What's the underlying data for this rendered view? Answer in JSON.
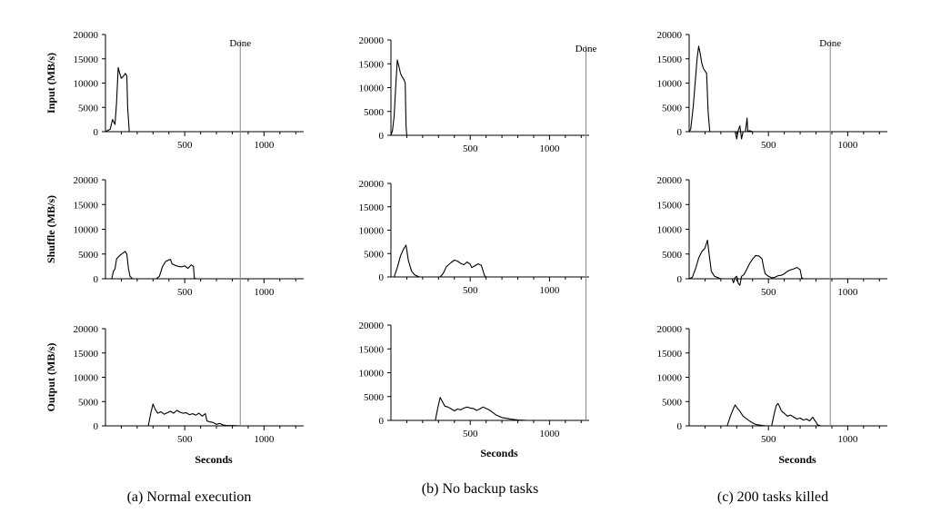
{
  "figure": {
    "done_label": "Done",
    "x_axis_title": "Seconds",
    "row_titles": [
      "Input (MB/s)",
      "Shuffle (MB/s)",
      "Output (MB/s)"
    ],
    "captions": [
      "(a) Normal execution",
      "(b) No backup tasks",
      "(c) 200 tasks killed"
    ]
  },
  "chart_data": [
    {
      "type": "line",
      "panel": "(a) Normal execution",
      "xlabel": "Seconds",
      "xlim": [
        0,
        1250
      ],
      "x_ticks": [
        500,
        1000
      ],
      "y_ticks": [
        0,
        5000,
        10000,
        15000,
        20000
      ],
      "done_time": 850,
      "series": [
        {
          "name": "Input (MB/s)",
          "ylim": [
            0,
            20000
          ],
          "points": [
            [
              0,
              0
            ],
            [
              30,
              500
            ],
            [
              45,
              2500
            ],
            [
              60,
              1500
            ],
            [
              70,
              6000
            ],
            [
              80,
              13200
            ],
            [
              90,
              12000
            ],
            [
              100,
              11000
            ],
            [
              115,
              11500
            ],
            [
              125,
              12000
            ],
            [
              135,
              11500
            ],
            [
              140,
              5000
            ],
            [
              150,
              0
            ],
            [
              1250,
              0
            ]
          ]
        },
        {
          "name": "Shuffle (MB/s)",
          "ylim": [
            0,
            20000
          ],
          "points": [
            [
              0,
              0
            ],
            [
              40,
              0
            ],
            [
              50,
              1500
            ],
            [
              60,
              2000
            ],
            [
              70,
              4000
            ],
            [
              90,
              4700
            ],
            [
              110,
              5200
            ],
            [
              125,
              5500
            ],
            [
              135,
              5000
            ],
            [
              145,
              2000
            ],
            [
              155,
              500
            ],
            [
              170,
              0
            ],
            [
              320,
              0
            ],
            [
              340,
              500
            ],
            [
              360,
              2500
            ],
            [
              380,
              3500
            ],
            [
              400,
              3800
            ],
            [
              410,
              3900
            ],
            [
              420,
              3000
            ],
            [
              440,
              2700
            ],
            [
              460,
              2500
            ],
            [
              480,
              2400
            ],
            [
              500,
              2600
            ],
            [
              520,
              2100
            ],
            [
              540,
              2800
            ],
            [
              555,
              2500
            ],
            [
              560,
              200
            ],
            [
              570,
              0
            ],
            [
              1250,
              0
            ]
          ]
        },
        {
          "name": "Output (MB/s)",
          "ylim": [
            0,
            20000
          ],
          "points": [
            [
              0,
              0
            ],
            [
              270,
              0
            ],
            [
              285,
              2500
            ],
            [
              300,
              4500
            ],
            [
              315,
              3300
            ],
            [
              330,
              2600
            ],
            [
              350,
              2900
            ],
            [
              370,
              2400
            ],
            [
              390,
              2700
            ],
            [
              410,
              3000
            ],
            [
              430,
              2600
            ],
            [
              450,
              3200
            ],
            [
              470,
              2800
            ],
            [
              490,
              2600
            ],
            [
              510,
              2700
            ],
            [
              530,
              2300
            ],
            [
              550,
              2500
            ],
            [
              570,
              2200
            ],
            [
              590,
              2600
            ],
            [
              610,
              2000
            ],
            [
              630,
              2500
            ],
            [
              640,
              1000
            ],
            [
              660,
              800
            ],
            [
              680,
              700
            ],
            [
              700,
              300
            ],
            [
              720,
              500
            ],
            [
              740,
              200
            ],
            [
              760,
              100
            ],
            [
              800,
              50
            ],
            [
              850,
              0
            ],
            [
              1250,
              0
            ]
          ]
        }
      ]
    },
    {
      "type": "line",
      "panel": "(b) No backup tasks",
      "xlabel": "Seconds",
      "xlim": [
        0,
        1250
      ],
      "x_ticks": [
        500,
        1000
      ],
      "y_ticks": [
        0,
        5000,
        10000,
        15000,
        20000
      ],
      "done_time": 1230,
      "series": [
        {
          "name": "Input (MB/s)",
          "ylim": [
            0,
            20000
          ],
          "points": [
            [
              0,
              0
            ],
            [
              10,
              1000
            ],
            [
              20,
              4000
            ],
            [
              30,
              10000
            ],
            [
              40,
              15800
            ],
            [
              50,
              14500
            ],
            [
              60,
              13000
            ],
            [
              70,
              12300
            ],
            [
              80,
              11800
            ],
            [
              90,
              11000
            ],
            [
              95,
              2000
            ],
            [
              100,
              0
            ],
            [
              1250,
              0
            ]
          ]
        },
        {
          "name": "Shuffle (MB/s)",
          "ylim": [
            0,
            20000
          ],
          "points": [
            [
              0,
              0
            ],
            [
              20,
              0
            ],
            [
              40,
              2000
            ],
            [
              60,
              4500
            ],
            [
              80,
              6000
            ],
            [
              95,
              6800
            ],
            [
              110,
              3500
            ],
            [
              130,
              1200
            ],
            [
              150,
              400
            ],
            [
              180,
              0
            ],
            [
              310,
              0
            ],
            [
              330,
              800
            ],
            [
              350,
              2200
            ],
            [
              380,
              3100
            ],
            [
              400,
              3600
            ],
            [
              420,
              3400
            ],
            [
              440,
              2900
            ],
            [
              460,
              2600
            ],
            [
              480,
              3200
            ],
            [
              500,
              2700
            ],
            [
              510,
              2000
            ],
            [
              530,
              2400
            ],
            [
              550,
              2800
            ],
            [
              570,
              2500
            ],
            [
              590,
              300
            ],
            [
              600,
              0
            ],
            [
              1250,
              0
            ]
          ]
        },
        {
          "name": "Output (MB/s)",
          "ylim": [
            0,
            20000
          ],
          "points": [
            [
              0,
              0
            ],
            [
              280,
              0
            ],
            [
              295,
              2500
            ],
            [
              310,
              4800
            ],
            [
              320,
              4200
            ],
            [
              340,
              3000
            ],
            [
              360,
              2800
            ],
            [
              380,
              2400
            ],
            [
              400,
              2000
            ],
            [
              420,
              2400
            ],
            [
              440,
              2200
            ],
            [
              460,
              2600
            ],
            [
              480,
              2800
            ],
            [
              500,
              2600
            ],
            [
              520,
              2500
            ],
            [
              540,
              2100
            ],
            [
              560,
              2400
            ],
            [
              580,
              2800
            ],
            [
              600,
              2500
            ],
            [
              620,
              2200
            ],
            [
              640,
              1700
            ],
            [
              660,
              1200
            ],
            [
              680,
              900
            ],
            [
              700,
              600
            ],
            [
              720,
              500
            ],
            [
              750,
              300
            ],
            [
              800,
              100
            ],
            [
              860,
              0
            ],
            [
              1250,
              0
            ]
          ]
        }
      ]
    },
    {
      "type": "line",
      "panel": "(c) 200 tasks killed",
      "xlabel": "Seconds",
      "xlim": [
        0,
        1250
      ],
      "x_ticks": [
        500,
        1000
      ],
      "y_ticks": [
        0,
        5000,
        10000,
        15000,
        20000
      ],
      "done_time": 890,
      "series": [
        {
          "name": "Input (MB/s)",
          "ylim": [
            0,
            20000
          ],
          "points": [
            [
              0,
              0
            ],
            [
              10,
              500
            ],
            [
              25,
              5000
            ],
            [
              40,
              11000
            ],
            [
              50,
              15000
            ],
            [
              60,
              17600
            ],
            [
              70,
              16000
            ],
            [
              80,
              14000
            ],
            [
              90,
              13000
            ],
            [
              100,
              12500
            ],
            [
              110,
              12000
            ],
            [
              120,
              4000
            ],
            [
              130,
              0
            ],
            [
              290,
              0
            ],
            [
              300,
              -1500
            ],
            [
              310,
              300
            ],
            [
              320,
              1200
            ],
            [
              330,
              -1500
            ],
            [
              340,
              0
            ],
            [
              355,
              0
            ],
            [
              365,
              2800
            ],
            [
              370,
              0
            ],
            [
              380,
              200
            ],
            [
              400,
              0
            ],
            [
              1250,
              0
            ]
          ]
        },
        {
          "name": "Shuffle (MB/s)",
          "ylim": [
            0,
            20000
          ],
          "points": [
            [
              0,
              0
            ],
            [
              20,
              300
            ],
            [
              40,
              2000
            ],
            [
              60,
              4200
            ],
            [
              80,
              5500
            ],
            [
              100,
              6200
            ],
            [
              115,
              7800
            ],
            [
              125,
              5200
            ],
            [
              140,
              1500
            ],
            [
              160,
              500
            ],
            [
              200,
              0
            ],
            [
              270,
              0
            ],
            [
              280,
              -800
            ],
            [
              290,
              300
            ],
            [
              300,
              500
            ],
            [
              310,
              -1000
            ],
            [
              320,
              -1300
            ],
            [
              330,
              500
            ],
            [
              345,
              800
            ],
            [
              360,
              1700
            ],
            [
              380,
              3000
            ],
            [
              400,
              4000
            ],
            [
              420,
              4700
            ],
            [
              440,
              4600
            ],
            [
              460,
              4000
            ],
            [
              470,
              2200
            ],
            [
              480,
              1000
            ],
            [
              500,
              500
            ],
            [
              520,
              200
            ],
            [
              540,
              300
            ],
            [
              560,
              600
            ],
            [
              580,
              700
            ],
            [
              600,
              1000
            ],
            [
              620,
              1500
            ],
            [
              640,
              1800
            ],
            [
              660,
              2000
            ],
            [
              680,
              2300
            ],
            [
              700,
              1800
            ],
            [
              710,
              200
            ],
            [
              720,
              0
            ],
            [
              1250,
              0
            ]
          ]
        },
        {
          "name": "Output (MB/s)",
          "ylim": [
            0,
            20000
          ],
          "points": [
            [
              0,
              0
            ],
            [
              240,
              0
            ],
            [
              260,
              2000
            ],
            [
              280,
              3600
            ],
            [
              290,
              4300
            ],
            [
              300,
              3800
            ],
            [
              320,
              3000
            ],
            [
              340,
              2000
            ],
            [
              360,
              1500
            ],
            [
              380,
              1000
            ],
            [
              400,
              600
            ],
            [
              420,
              300
            ],
            [
              460,
              100
            ],
            [
              490,
              0
            ],
            [
              520,
              0
            ],
            [
              540,
              3000
            ],
            [
              550,
              4200
            ],
            [
              560,
              4600
            ],
            [
              570,
              4000
            ],
            [
              580,
              3200
            ],
            [
              590,
              2800
            ],
            [
              600,
              2600
            ],
            [
              620,
              2000
            ],
            [
              640,
              2200
            ],
            [
              660,
              1800
            ],
            [
              680,
              1400
            ],
            [
              700,
              1600
            ],
            [
              720,
              1200
            ],
            [
              740,
              1400
            ],
            [
              760,
              1000
            ],
            [
              780,
              1800
            ],
            [
              790,
              1200
            ],
            [
              800,
              800
            ],
            [
              810,
              200
            ],
            [
              830,
              0
            ],
            [
              1250,
              0
            ]
          ]
        }
      ]
    }
  ]
}
